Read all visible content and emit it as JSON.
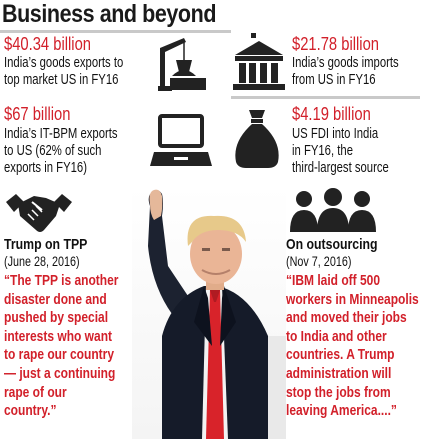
{
  "title": "Business and beyond",
  "stats": [
    {
      "amount": "$40.34 billion",
      "lines": [
        "India’s goods exports to",
        "top market US in FY16"
      ],
      "icon": "crane-cargo-icon"
    },
    {
      "amount": "$21.78 billion",
      "lines": [
        "India’s goods imports",
        "from US in FY16"
      ],
      "icon": "bank-building-icon"
    },
    {
      "amount": "$67 billion",
      "lines": [
        "India’s IT-BPM exports",
        "to US (62% of such",
        "exports in FY16)"
      ],
      "icon": "laptop-icon"
    },
    {
      "amount": "$4.19 billion",
      "lines": [
        "US FDI into India",
        "in FY16, the",
        "third-largest source"
      ],
      "icon": "money-bag-icon"
    }
  ],
  "quotes": {
    "left": {
      "heading": "Trump on TPP",
      "date": "(June 28, 2016)",
      "lines": [
        "“The TPP is another",
        "disaster done and",
        "pushed by special",
        "interests who want",
        "to rape our country",
        "— just a continuing",
        "rape of our",
        "country.”"
      ]
    },
    "right": {
      "heading": "On outsourcing",
      "date": "(Nov 7, 2016)",
      "lines": [
        "“IBM laid off 500",
        "workers in Minneapolis",
        "and moved their jobs",
        "to India and other",
        "countries. A Trump",
        "administration will",
        "stop the jobs from",
        "leaving America....”"
      ]
    }
  },
  "colors": {
    "accent_red": "#d2202a",
    "text": "#111111",
    "divider": "#c9c9c9",
    "icon": "#222222"
  }
}
